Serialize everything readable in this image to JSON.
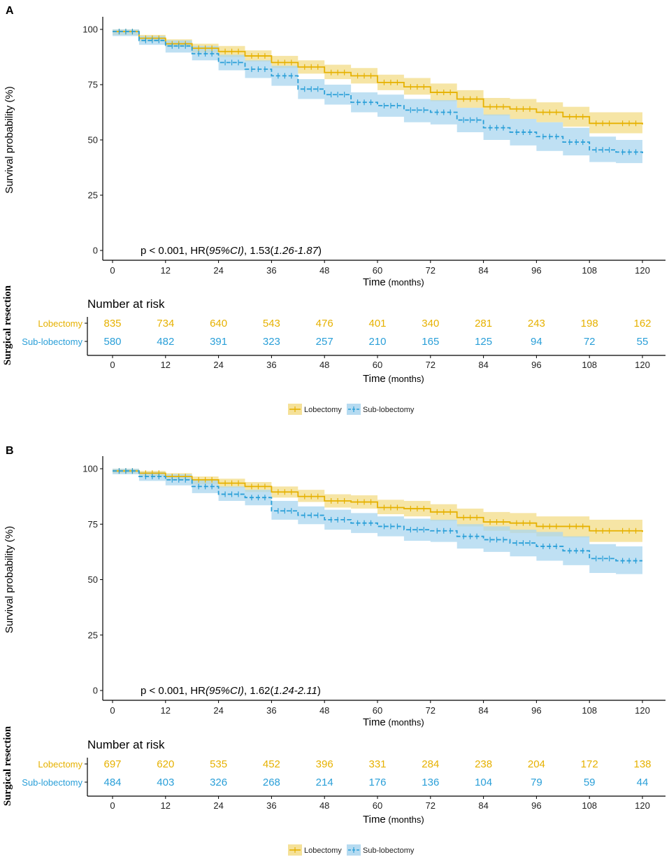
{
  "colors": {
    "lobectomy": "#e6b100",
    "sub_lobectomy": "#2a9fd8",
    "lob_band": "#f3dc87",
    "sub_band": "#a9d5ef"
  },
  "chart_data": [
    {
      "type": "line",
      "subtype": "kaplan-meier",
      "panel_label": "A",
      "ylabel": "Survival probability (%)",
      "xlabel": "Time",
      "xlabel_unit": "(months)",
      "x_ticks": [
        "0",
        "12",
        "24",
        "36",
        "48",
        "60",
        "72",
        "84",
        "96",
        "108",
        "120"
      ],
      "y_ticks": [
        "0",
        "25",
        "50",
        "75",
        "100"
      ],
      "xlim": [
        0,
        120
      ],
      "ylim": [
        0,
        100
      ],
      "annotation": {
        "p": "p < 0.001",
        "hr": ", HR(",
        "ci_label": "95%CI)",
        "value": ", 1.53(",
        "ci": "1.26-1.87",
        "close": ")"
      },
      "series": [
        {
          "name": "Lobectomy",
          "x": [
            0,
            6,
            12,
            18,
            24,
            30,
            36,
            42,
            48,
            54,
            60,
            66,
            72,
            78,
            84,
            90,
            96,
            102,
            108,
            114,
            120
          ],
          "y": [
            99,
            96,
            93.5,
            91.5,
            90,
            88,
            85,
            83,
            80.5,
            79,
            76,
            74,
            71.5,
            68.5,
            65,
            64,
            62.5,
            60.5,
            57.5,
            57.5,
            57
          ],
          "lower": [
            97.5,
            94.5,
            92,
            89.5,
            87.5,
            85.5,
            82.5,
            80,
            77.5,
            75.5,
            72.5,
            70.5,
            67.5,
            64.5,
            61,
            59.5,
            58,
            56,
            53,
            53,
            52
          ],
          "upper": [
            100,
            97.5,
            95.5,
            93.5,
            92.5,
            90.5,
            88,
            86,
            84,
            82.5,
            79.5,
            78,
            75.5,
            72.5,
            69,
            68.5,
            67,
            65,
            62.5,
            62.5,
            62
          ]
        },
        {
          "name": "Sub-lobectomy",
          "x": [
            0,
            6,
            12,
            18,
            24,
            30,
            36,
            42,
            48,
            54,
            60,
            66,
            72,
            78,
            84,
            90,
            96,
            102,
            108,
            114,
            120
          ],
          "y": [
            99,
            95,
            92.5,
            89,
            85,
            82,
            79,
            73,
            70.5,
            67,
            65.5,
            63.5,
            62.5,
            59,
            55.5,
            53.5,
            51.5,
            49,
            45.5,
            44.5,
            44
          ],
          "lower": [
            97,
            93,
            89.5,
            86,
            81.5,
            78,
            74.5,
            68.5,
            66,
            62.5,
            60.5,
            58,
            57,
            53.5,
            50,
            47.5,
            45,
            43,
            40,
            39.5,
            39
          ],
          "upper": [
            100,
            97,
            95,
            92.5,
            88.5,
            86,
            83.5,
            77.5,
            75,
            71.5,
            70.5,
            68.5,
            68,
            64.5,
            61.5,
            59.5,
            58,
            55.5,
            51.5,
            50,
            49.5
          ]
        }
      ],
      "risk_table": {
        "title": "Number at risk",
        "strata_title": "Surgical resection",
        "times": [
          "0",
          "12",
          "24",
          "36",
          "48",
          "60",
          "72",
          "84",
          "96",
          "108",
          "120"
        ],
        "rows": [
          {
            "name": "Lobectomy",
            "values": [
              "835",
              "734",
              "640",
              "543",
              "476",
              "401",
              "340",
              "281",
              "243",
              "198",
              "162"
            ]
          },
          {
            "name": "Sub-lobectomy",
            "values": [
              "580",
              "482",
              "391",
              "323",
              "257",
              "210",
              "165",
              "125",
              "94",
              "72",
              "55"
            ]
          }
        ],
        "xlabel": "Time",
        "xlabel_unit": "(months)"
      },
      "legend": [
        "Lobectomy",
        "Sub-lobectomy"
      ]
    },
    {
      "type": "line",
      "subtype": "kaplan-meier",
      "panel_label": "B",
      "ylabel": "Survival probability (%)",
      "xlabel": "Time",
      "xlabel_unit": "(months)",
      "x_ticks": [
        "0",
        "12",
        "24",
        "36",
        "48",
        "60",
        "72",
        "84",
        "96",
        "108",
        "120"
      ],
      "y_ticks": [
        "0",
        "25",
        "50",
        "75",
        "100"
      ],
      "xlim": [
        0,
        120
      ],
      "ylim": [
        0,
        100
      ],
      "annotation": {
        "p": "p < 0.001",
        "hr": ", HR",
        "ci_label": "(95%CI)",
        "value": ", 1.62(",
        "ci": "1.24-2.11",
        "close": ")"
      },
      "series": [
        {
          "name": "Lobectomy",
          "x": [
            0,
            6,
            12,
            18,
            24,
            30,
            36,
            42,
            48,
            54,
            60,
            66,
            72,
            78,
            84,
            90,
            96,
            102,
            108,
            114,
            120
          ],
          "y": [
            99,
            98,
            96.5,
            95,
            93.5,
            92,
            89.5,
            87.5,
            85.5,
            85,
            82.5,
            82,
            80.5,
            78,
            76,
            75.5,
            74,
            74,
            72,
            72,
            71.5
          ],
          "lower": [
            98,
            96.5,
            95,
            93,
            91.5,
            89.5,
            87,
            85,
            82.5,
            82,
            79.5,
            78.5,
            76.5,
            74,
            72,
            71,
            69.5,
            69,
            67,
            67,
            66.5
          ],
          "upper": [
            100,
            99,
            98,
            96.5,
            95.5,
            94,
            92,
            90.5,
            88.5,
            88,
            86,
            85.5,
            84,
            82,
            80.5,
            80,
            78.5,
            78.5,
            77,
            77,
            76.5
          ]
        },
        {
          "name": "Sub-lobectomy",
          "x": [
            0,
            6,
            12,
            18,
            24,
            30,
            36,
            42,
            48,
            54,
            60,
            66,
            72,
            78,
            84,
            90,
            96,
            102,
            108,
            114,
            120
          ],
          "y": [
            99,
            96.5,
            95,
            92,
            88.5,
            87,
            81,
            79,
            77,
            75.5,
            74,
            72.5,
            72,
            69.5,
            68,
            66.5,
            65,
            63,
            59.5,
            58.5,
            58.5
          ],
          "lower": [
            97.5,
            94.5,
            92.5,
            89,
            85.5,
            83.5,
            77,
            75,
            72.5,
            71,
            69.5,
            67.5,
            67,
            64,
            62.5,
            60.5,
            58.5,
            56.5,
            53,
            52.5,
            52.5
          ],
          "upper": [
            100,
            98.5,
            97.5,
            95,
            92,
            90.5,
            85.5,
            83,
            81.5,
            80,
            78.5,
            77.5,
            77,
            75,
            74,
            72.5,
            71.5,
            69.5,
            66,
            65,
            65
          ]
        }
      ],
      "risk_table": {
        "title": "Number at risk",
        "strata_title": "Surgical resection",
        "times": [
          "0",
          "12",
          "24",
          "36",
          "48",
          "60",
          "72",
          "84",
          "96",
          "108",
          "120"
        ],
        "rows": [
          {
            "name": "Lobectomy",
            "values": [
              "697",
              "620",
              "535",
              "452",
              "396",
              "331",
              "284",
              "238",
              "204",
              "172",
              "138"
            ]
          },
          {
            "name": "Sub-lobectomy",
            "values": [
              "484",
              "403",
              "326",
              "268",
              "214",
              "176",
              "136",
              "104",
              "79",
              "59",
              "44"
            ]
          }
        ],
        "xlabel": "Time",
        "xlabel_unit": "(months)"
      },
      "legend": [
        "Lobectomy",
        "Sub-lobectomy"
      ]
    }
  ]
}
